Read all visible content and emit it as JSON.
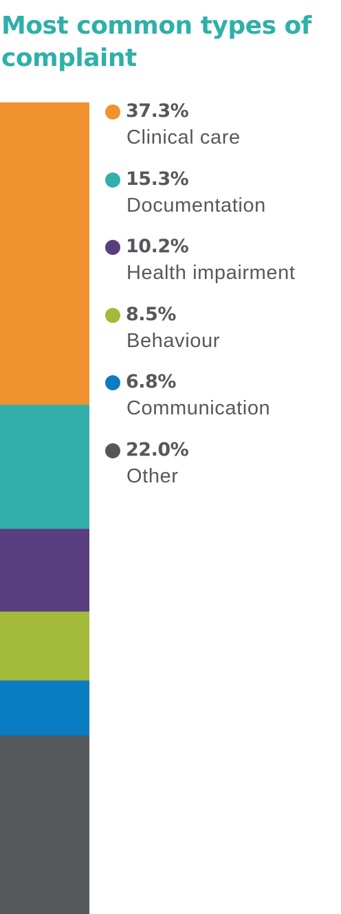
{
  "colors": {
    "title": "#2fb0a9",
    "value_text": "#55585c",
    "label_text": "#55585c"
  },
  "chart_data": {
    "type": "bar",
    "stacked": true,
    "orientation": "vertical",
    "unit": "%",
    "title": "Most common types of complaint",
    "legend_position": "right",
    "categories": [
      "Clinical care",
      "Documentation",
      "Health impairment",
      "Behaviour",
      "Communication",
      "Other"
    ],
    "values": [
      37.3,
      15.3,
      10.2,
      8.5,
      6.8,
      22.0
    ],
    "value_labels": [
      "37.3%",
      "15.3%",
      "10.2%",
      "8.5%",
      "6.8%",
      "22.0%"
    ],
    "colors": [
      "#f0922f",
      "#33aeab",
      "#5a3f80",
      "#a3ba3a",
      "#097cc2",
      "#54585b"
    ]
  }
}
